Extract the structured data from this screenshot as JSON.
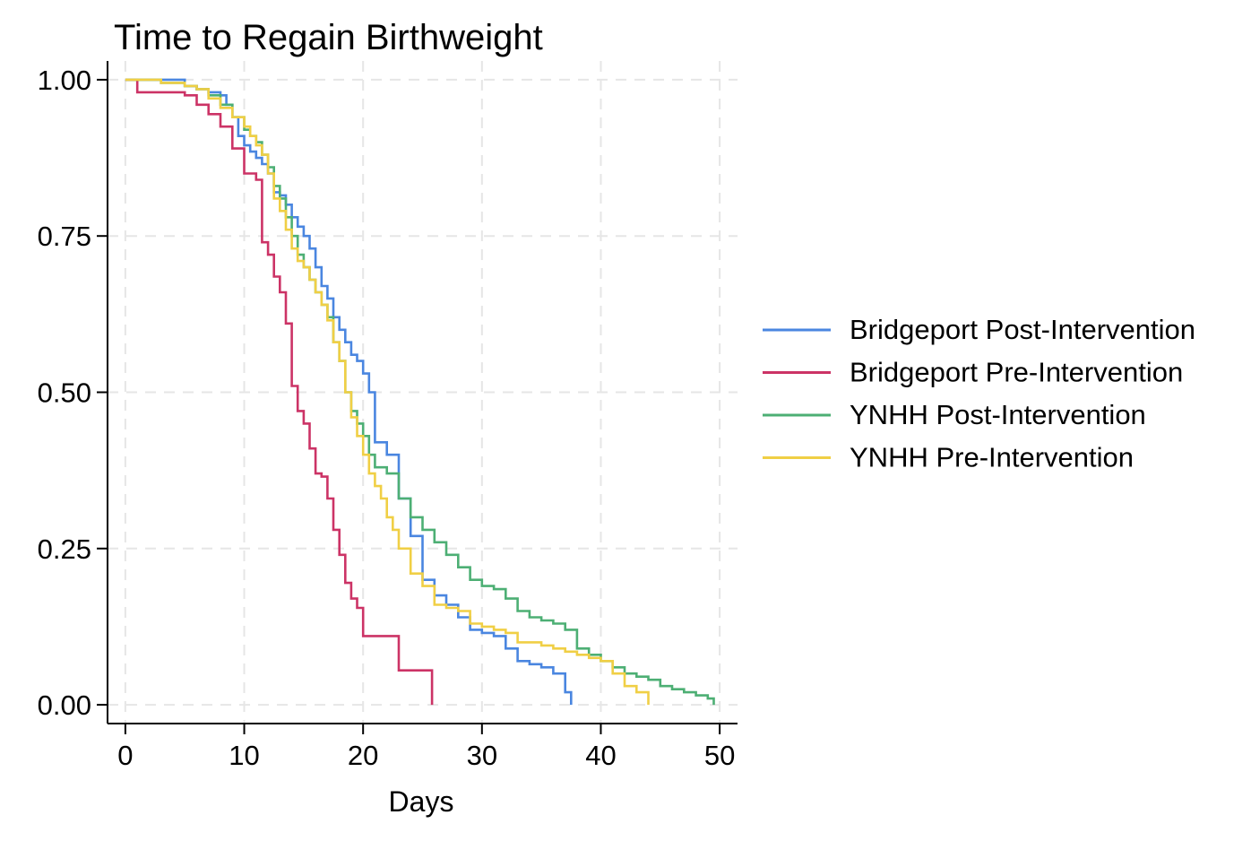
{
  "chart_data": {
    "type": "line",
    "title": "Time to Regain Birthweight",
    "xlabel": "Days",
    "ylabel": "",
    "xlim": [
      -1.5,
      51.5
    ],
    "ylim": [
      -0.03,
      1.03
    ],
    "xticks": [
      0,
      10,
      20,
      30,
      40,
      50
    ],
    "yticks": [
      0.0,
      0.25,
      0.5,
      0.75,
      1.0
    ],
    "ytick_labels": [
      "0.00",
      "0.25",
      "0.50",
      "0.75",
      "1.00"
    ],
    "xtick_labels": [
      "0",
      "10",
      "20",
      "30",
      "40",
      "50"
    ],
    "grid": true,
    "legend_position": "right",
    "step": true,
    "series": [
      {
        "name": "Bridgeport Post-Intervention",
        "color": "#4a86e0",
        "x": [
          0,
          4.5,
          5,
          6,
          7,
          8,
          8.5,
          9,
          9.5,
          10,
          10.5,
          11,
          11.5,
          12,
          12.5,
          13,
          13.5,
          14,
          14.5,
          15,
          15.5,
          16,
          16.5,
          17,
          17.5,
          18,
          18.5,
          19,
          19.5,
          20,
          20.5,
          21,
          22,
          23,
          24,
          25,
          26,
          27,
          28,
          29,
          30,
          31,
          32,
          33,
          34,
          35,
          36,
          37,
          37.5
        ],
        "y": [
          1.0,
          1.0,
          0.99,
          0.985,
          0.98,
          0.975,
          0.96,
          0.94,
          0.91,
          0.895,
          0.885,
          0.875,
          0.865,
          0.85,
          0.82,
          0.815,
          0.8,
          0.78,
          0.765,
          0.75,
          0.73,
          0.7,
          0.67,
          0.65,
          0.62,
          0.6,
          0.58,
          0.56,
          0.55,
          0.53,
          0.5,
          0.42,
          0.4,
          0.33,
          0.27,
          0.2,
          0.175,
          0.16,
          0.14,
          0.12,
          0.115,
          0.11,
          0.09,
          0.07,
          0.065,
          0.06,
          0.05,
          0.02,
          0.0
        ]
      },
      {
        "name": "Bridgeport Pre-Intervention",
        "color": "#cc3366",
        "x": [
          0,
          1,
          5,
          6,
          7,
          8,
          9,
          10,
          11,
          11.5,
          12,
          12.5,
          13,
          13.5,
          14,
          14.5,
          15,
          15.5,
          16,
          16.5,
          17,
          17.5,
          18,
          18.5,
          19,
          19.5,
          20,
          22,
          23,
          25,
          25.8
        ],
        "y": [
          1.0,
          0.98,
          0.975,
          0.96,
          0.945,
          0.925,
          0.89,
          0.85,
          0.84,
          0.74,
          0.72,
          0.685,
          0.66,
          0.61,
          0.51,
          0.47,
          0.45,
          0.41,
          0.37,
          0.365,
          0.33,
          0.28,
          0.24,
          0.195,
          0.17,
          0.155,
          0.11,
          0.11,
          0.055,
          0.055,
          0.0
        ]
      },
      {
        "name": "YNHH Post-Intervention",
        "color": "#4daf74",
        "x": [
          0,
          3,
          5,
          6,
          7,
          8,
          9,
          10,
          10.5,
          11,
          11.5,
          12,
          12.5,
          13,
          13.5,
          14,
          14.5,
          15,
          15.5,
          16,
          16.5,
          17,
          17.5,
          18,
          18.5,
          19,
          19.5,
          20,
          20.5,
          21,
          22,
          23,
          24,
          25,
          26,
          27,
          28,
          29,
          30,
          31,
          32,
          33,
          34,
          35,
          36,
          37,
          38,
          39,
          40,
          41,
          42,
          43,
          44,
          45,
          46,
          47,
          48,
          49,
          49.5
        ],
        "y": [
          1.0,
          0.995,
          0.99,
          0.985,
          0.975,
          0.96,
          0.94,
          0.92,
          0.91,
          0.9,
          0.88,
          0.86,
          0.83,
          0.81,
          0.78,
          0.75,
          0.72,
          0.7,
          0.68,
          0.66,
          0.64,
          0.62,
          0.58,
          0.55,
          0.5,
          0.47,
          0.45,
          0.43,
          0.4,
          0.38,
          0.37,
          0.33,
          0.3,
          0.28,
          0.26,
          0.24,
          0.22,
          0.2,
          0.19,
          0.185,
          0.17,
          0.15,
          0.14,
          0.135,
          0.13,
          0.12,
          0.09,
          0.08,
          0.07,
          0.06,
          0.05,
          0.045,
          0.04,
          0.03,
          0.025,
          0.02,
          0.015,
          0.01,
          0.0
        ]
      },
      {
        "name": "YNHH Pre-Intervention",
        "color": "#f0cf45",
        "x": [
          0,
          3,
          5,
          6,
          7,
          8,
          9,
          10,
          10.5,
          11,
          11.5,
          12,
          12.5,
          13,
          13.5,
          14,
          14.5,
          15,
          15.5,
          16,
          16.5,
          17,
          17.5,
          18,
          18.5,
          19,
          19.5,
          20,
          20.5,
          21,
          21.5,
          22,
          22.5,
          23,
          24,
          25,
          26,
          27,
          28,
          29,
          30,
          31,
          32,
          33,
          34,
          35,
          36,
          37,
          38,
          39,
          40,
          41,
          42,
          43,
          44
        ],
        "y": [
          1.0,
          0.995,
          0.99,
          0.985,
          0.97,
          0.955,
          0.94,
          0.925,
          0.91,
          0.895,
          0.88,
          0.85,
          0.81,
          0.79,
          0.76,
          0.73,
          0.71,
          0.7,
          0.68,
          0.66,
          0.64,
          0.615,
          0.58,
          0.55,
          0.5,
          0.46,
          0.43,
          0.4,
          0.37,
          0.35,
          0.33,
          0.3,
          0.28,
          0.25,
          0.21,
          0.19,
          0.16,
          0.155,
          0.15,
          0.13,
          0.125,
          0.12,
          0.115,
          0.1,
          0.1,
          0.095,
          0.09,
          0.085,
          0.08,
          0.075,
          0.07,
          0.05,
          0.03,
          0.02,
          0.0
        ]
      }
    ]
  }
}
